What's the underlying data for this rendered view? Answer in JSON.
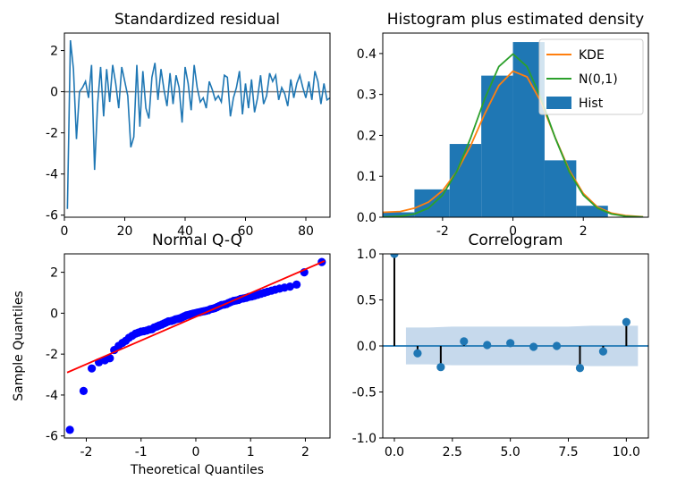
{
  "chart_data": [
    {
      "type": "line",
      "title": "Standardized residual",
      "xlabel": "",
      "ylabel": "",
      "xlim": [
        0,
        88
      ],
      "ylim": [
        -6.1,
        2.85
      ],
      "xticks": [
        0,
        20,
        40,
        60,
        80
      ],
      "yticks": [
        -6,
        -4,
        -2,
        0,
        2
      ],
      "zero_line": 0,
      "grid": false,
      "colors": {
        "line": "#1f77b4",
        "zero": "#7f7f7f"
      },
      "series": [
        {
          "x": [
            1,
            2,
            3,
            4,
            5,
            6,
            7,
            8,
            9,
            10,
            11,
            12,
            13,
            14,
            15,
            16,
            17,
            18,
            19,
            20,
            21,
            22,
            23,
            24,
            25,
            26,
            27,
            28,
            29,
            30,
            31,
            32,
            33,
            34,
            35,
            36,
            37,
            38,
            39,
            40,
            41,
            42,
            43,
            44,
            45,
            46,
            47,
            48,
            49,
            50,
            51,
            52,
            53,
            54,
            55,
            56,
            57,
            58,
            59,
            60,
            61,
            62,
            63,
            64,
            65,
            66,
            67,
            68,
            69,
            70,
            71,
            72,
            73,
            74,
            75,
            76,
            77,
            78,
            79,
            80,
            81,
            82,
            83,
            84,
            85,
            86,
            87,
            88
          ],
          "values": [
            -5.7,
            2.5,
            1.1,
            -2.3,
            0.0,
            0.2,
            0.5,
            -0.3,
            1.3,
            -3.8,
            -0.6,
            1.2,
            -1.2,
            1.1,
            -0.5,
            1.3,
            0.4,
            -0.8,
            1.2,
            0.5,
            -0.2,
            -2.7,
            -2.2,
            1.3,
            -1.7,
            1.0,
            -0.8,
            -1.3,
            0.7,
            1.4,
            -0.4,
            1.1,
            0.1,
            -0.7,
            0.9,
            -0.6,
            0.8,
            0.2,
            -1.5,
            1.2,
            0.4,
            -0.9,
            1.3,
            0.2,
            -0.5,
            -0.3,
            -0.8,
            0.5,
            0.1,
            -0.4,
            -0.2,
            -0.5,
            0.8,
            0.7,
            -1.2,
            -0.3,
            0.2,
            1.0,
            -1.1,
            0.4,
            -0.8,
            0.6,
            -1.0,
            -0.3,
            0.8,
            -0.6,
            -0.2,
            0.9,
            0.5,
            0.8,
            -0.4,
            0.2,
            -0.1,
            -0.7,
            0.6,
            -0.3,
            0.4,
            0.8,
            0.2,
            -0.3,
            0.5,
            -0.4,
            1.0,
            0.5,
            -0.6,
            0.4,
            -0.4,
            -0.3
          ]
        }
      ]
    },
    {
      "type": "bar",
      "title": "Histogram plus estimated density",
      "xlim": [
        -3.7,
        3.85
      ],
      "ylim": [
        0,
        0.45
      ],
      "xticks": [
        -2,
        0,
        2
      ],
      "yticks": [
        0.0,
        0.1,
        0.2,
        0.3,
        0.4
      ],
      "legend_position": "top-right",
      "grid": false,
      "hist": {
        "name": "Hist",
        "color": "#1f77b4",
        "bin_edges": [
          -3.7,
          -2.8,
          -1.8,
          -0.9,
          0.0,
          0.9,
          1.8,
          2.7
        ],
        "values": [
          0.012,
          0.068,
          0.179,
          0.346,
          0.428,
          0.139,
          0.028
        ]
      },
      "series": [
        {
          "name": "KDE",
          "color": "#ff7f0e",
          "x": [
            -3.7,
            -3.2,
            -2.8,
            -2.4,
            -2.0,
            -1.6,
            -1.2,
            -0.8,
            -0.4,
            0.0,
            0.4,
            0.8,
            1.2,
            1.6,
            2.0,
            2.4,
            2.8,
            3.2,
            3.7
          ],
          "values": [
            0.012,
            0.014,
            0.022,
            0.037,
            0.065,
            0.111,
            0.175,
            0.253,
            0.322,
            0.357,
            0.343,
            0.281,
            0.195,
            0.115,
            0.058,
            0.025,
            0.01,
            0.004,
            0.001
          ]
        },
        {
          "name": "N(0,1)",
          "color": "#2ca02c",
          "x": [
            -3.7,
            -3.2,
            -2.8,
            -2.4,
            -2.0,
            -1.6,
            -1.2,
            -0.8,
            -0.4,
            0.0,
            0.4,
            0.8,
            1.2,
            1.6,
            2.0,
            2.4,
            2.8,
            3.2,
            3.7
          ],
          "values": [
            0.0004,
            0.0024,
            0.0079,
            0.0224,
            0.054,
            0.1109,
            0.1942,
            0.2897,
            0.3683,
            0.3989,
            0.3683,
            0.2897,
            0.1942,
            0.1109,
            0.054,
            0.0224,
            0.0079,
            0.0024,
            0.0004
          ]
        }
      ]
    },
    {
      "type": "scatter",
      "title": "Normal Q-Q",
      "xlabel": "Theoretical Quantiles",
      "ylabel": "Sample Quantiles",
      "xlim": [
        -2.4,
        2.45
      ],
      "ylim": [
        -6.1,
        2.9
      ],
      "xticks": [
        -2,
        -1,
        0,
        1,
        2
      ],
      "yticks": [
        -6,
        -4,
        -2,
        0,
        2
      ],
      "grid": false,
      "colors": {
        "points": "#0000ff",
        "line": "#ff0000"
      },
      "reference_line": {
        "x": [
          -2.35,
          2.35
        ],
        "y": [
          -2.9,
          2.55
        ]
      },
      "series": [
        {
          "x": [
            -2.3,
            -2.05,
            -1.9,
            -1.77,
            -1.66,
            -1.57,
            -1.49,
            -1.41,
            -1.34,
            -1.28,
            -1.22,
            -1.16,
            -1.1,
            -1.05,
            -1.0,
            -0.95,
            -0.9,
            -0.85,
            -0.8,
            -0.76,
            -0.71,
            -0.67,
            -0.62,
            -0.58,
            -0.54,
            -0.5,
            -0.45,
            -0.41,
            -0.37,
            -0.33,
            -0.29,
            -0.25,
            -0.21,
            -0.17,
            -0.13,
            -0.09,
            -0.05,
            -0.01,
            0.03,
            0.07,
            0.11,
            0.15,
            0.19,
            0.23,
            0.27,
            0.31,
            0.35,
            0.39,
            0.43,
            0.47,
            0.52,
            0.56,
            0.6,
            0.64,
            0.69,
            0.73,
            0.78,
            0.82,
            0.87,
            0.92,
            0.97,
            1.02,
            1.07,
            1.13,
            1.19,
            1.25,
            1.31,
            1.38,
            1.45,
            1.53,
            1.62,
            1.72,
            1.84,
            1.98,
            2.3
          ],
          "values": [
            -5.7,
            -3.8,
            -2.7,
            -2.4,
            -2.3,
            -2.2,
            -1.8,
            -1.6,
            -1.45,
            -1.35,
            -1.2,
            -1.1,
            -1.0,
            -0.95,
            -0.9,
            -0.88,
            -0.85,
            -0.8,
            -0.78,
            -0.7,
            -0.65,
            -0.6,
            -0.55,
            -0.5,
            -0.45,
            -0.4,
            -0.38,
            -0.35,
            -0.3,
            -0.28,
            -0.25,
            -0.2,
            -0.15,
            -0.1,
            -0.08,
            -0.05,
            -0.02,
            0.0,
            0.03,
            0.05,
            0.08,
            0.1,
            0.12,
            0.15,
            0.2,
            0.22,
            0.25,
            0.3,
            0.35,
            0.4,
            0.42,
            0.45,
            0.5,
            0.55,
            0.6,
            0.62,
            0.65,
            0.7,
            0.72,
            0.75,
            0.8,
            0.82,
            0.85,
            0.9,
            0.95,
            1.0,
            1.05,
            1.1,
            1.15,
            1.2,
            1.25,
            1.3,
            1.4,
            2.0,
            2.5
          ]
        }
      ]
    },
    {
      "type": "bar",
      "title": "Correlogram",
      "xlim": [
        -0.5,
        10.95
      ],
      "ylim": [
        -1.0,
        1.0
      ],
      "xticks": [
        0.0,
        2.5,
        5.0,
        7.5,
        10.0
      ],
      "yticks": [
        -1.0,
        -0.5,
        0.0,
        0.5,
        1.0
      ],
      "grid": false,
      "colors": {
        "stems": "#000000",
        "markers": "#1f77b4",
        "zero": "#1f77b4",
        "band": "#c6d9ec"
      },
      "confidence_band": {
        "x": [
          0.5,
          1.5,
          2.5,
          3.5,
          4.5,
          5.5,
          6.5,
          7.5,
          8.5,
          9.5,
          10.5
        ],
        "upper": [
          0.2,
          0.2,
          0.21,
          0.21,
          0.21,
          0.21,
          0.21,
          0.21,
          0.22,
          0.22,
          0.22
        ]
      },
      "lags": [
        0,
        1,
        2,
        3,
        4,
        5,
        6,
        7,
        8,
        9,
        10
      ],
      "values": [
        1.0,
        -0.08,
        -0.23,
        0.05,
        0.01,
        0.03,
        -0.01,
        0.0,
        -0.24,
        -0.06,
        0.26
      ]
    }
  ]
}
